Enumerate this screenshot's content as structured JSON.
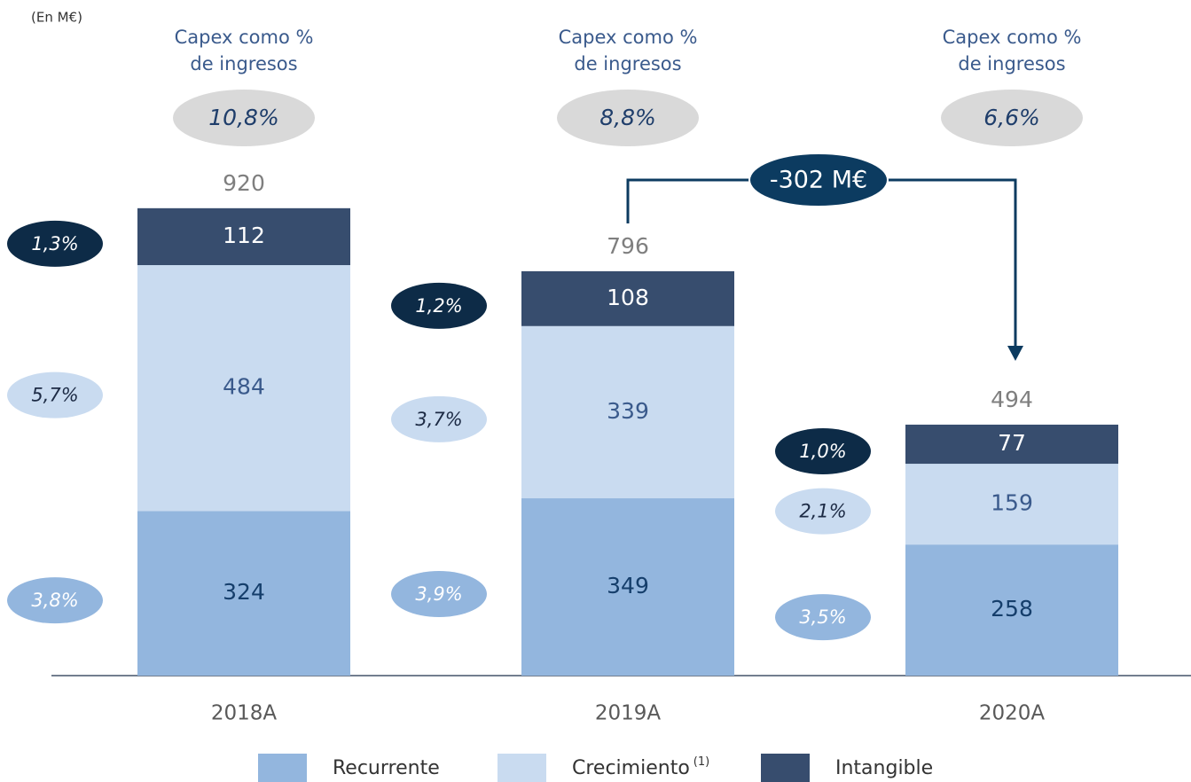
{
  "chart_data": {
    "type": "stacked_bar",
    "unit_label": "(En M€)",
    "categories": [
      "2018A",
      "2019A",
      "2020A"
    ],
    "series": [
      {
        "name": "Recurrente",
        "color": "#93b6de",
        "label_color": "#153e6b",
        "values": [
          324,
          349,
          258
        ],
        "share": {
          "color": "#93b6de",
          "text_color": "#ffffff",
          "values": [
            3.8,
            3.9,
            3.5
          ],
          "value_labels": [
            "3,8%",
            "3,9%",
            "3,5%"
          ]
        }
      },
      {
        "name": "Crecimiento",
        "footnote_mark": "(1)",
        "color": "#c9dbf0",
        "label_color": "#3a5a8c",
        "values": [
          484,
          339,
          159
        ],
        "share": {
          "color": "#c9dbf0",
          "text_color": "#1c2a44",
          "values": [
            5.7,
            3.7,
            2.1
          ],
          "value_labels": [
            "5,7%",
            "3,7%",
            "2,1%"
          ]
        }
      },
      {
        "name": "Intangible",
        "color": "#374d6e",
        "label_color": "#ffffff",
        "values": [
          112,
          108,
          77
        ],
        "share": {
          "color": "#0d2b47",
          "text_color": "#ffffff",
          "values": [
            1.3,
            1.2,
            1.0
          ],
          "value_labels": [
            "1,3%",
            "1,2%",
            "1,0%"
          ]
        }
      }
    ],
    "totals": [
      920,
      796,
      494
    ],
    "capex_ratio": {
      "title": [
        "Capex como %",
        "de ingresos"
      ],
      "values": [
        10.8,
        8.8,
        6.6
      ],
      "value_labels": [
        "10,8%",
        "8,8%",
        "6,6%"
      ]
    },
    "annotation": "-302 M€",
    "ylim": [
      0,
      1000
    ]
  }
}
